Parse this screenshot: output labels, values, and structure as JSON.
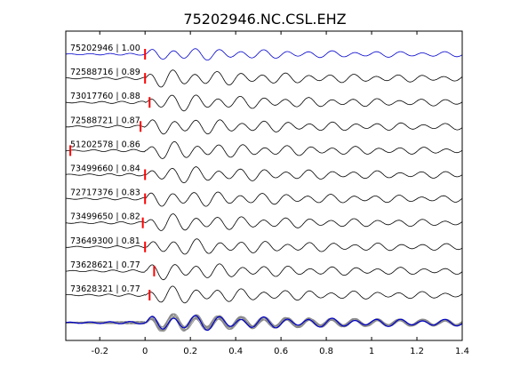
{
  "chart_data": {
    "type": "line",
    "title": "75202946.NC.CSL.EHZ",
    "xlabel": "",
    "ylabel": "",
    "xlim": [
      -0.35,
      1.4
    ],
    "xticks": [
      -0.2,
      0,
      0.2,
      0.4,
      0.6,
      0.8,
      1,
      1.2,
      1.4
    ],
    "xtick_labels": [
      "-0.2",
      "0",
      "0.2",
      "0.4",
      "0.6",
      "0.8",
      "1",
      "1.2",
      "1.4"
    ],
    "grid": false,
    "colors": {
      "master": "#0000cc",
      "trace": "#000000",
      "pick": "#ff0000",
      "stack": "#888888"
    },
    "series": [
      {
        "name": "75202946 | 1.00",
        "pick": 0.0,
        "master": true
      },
      {
        "name": "72588716 | 0.89",
        "pick": 0.0
      },
      {
        "name": "73017760 | 0.88",
        "pick": 0.02
      },
      {
        "name": "72588721 | 0.87",
        "pick": -0.02
      },
      {
        "name": "51202578 | 0.86",
        "pick": -0.33
      },
      {
        "name": "73499660 | 0.84",
        "pick": 0.0
      },
      {
        "name": "72717376 | 0.83",
        "pick": 0.0
      },
      {
        "name": "73499650 | 0.82",
        "pick": -0.01
      },
      {
        "name": "73649300 | 0.81",
        "pick": 0.0
      },
      {
        "name": "73628621 | 0.77",
        "pick": 0.04
      },
      {
        "name": "73628321 | 0.77",
        "pick": 0.02
      }
    ]
  }
}
